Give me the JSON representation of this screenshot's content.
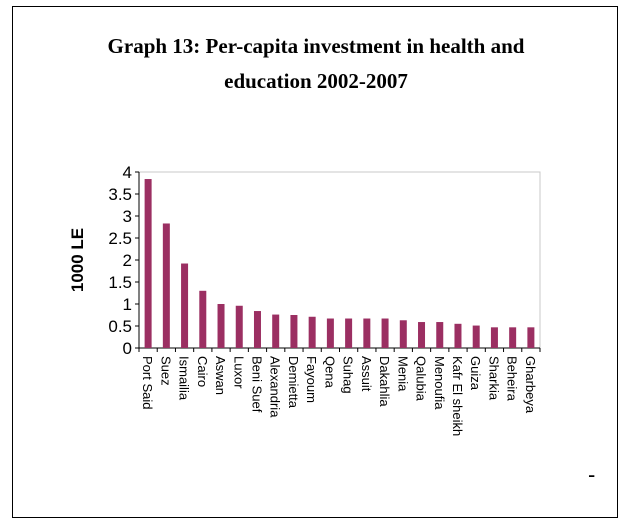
{
  "chart_data": {
    "type": "bar",
    "title_line1": "Graph 13: Per-capita investment in health and",
    "title_line2": "education 2002-2007",
    "ylabel": "1000 LE",
    "xlabel": "",
    "ylim": [
      0,
      4
    ],
    "yticks": [
      "0",
      "0.5",
      "1",
      "1.5",
      "2",
      "2.5",
      "3",
      "3.5",
      "4"
    ],
    "grid": false,
    "legend": "none",
    "bar_color": "#9B2F62",
    "categories": [
      "Port Said",
      "Suez",
      "Ismailia",
      "Cairo",
      "Aswan",
      "Luxor",
      "Beni Suef",
      "Alexandria",
      "Demietta",
      "Fayoum",
      "Qena",
      "Suhag",
      "Assuit",
      "Dakahlia",
      "Menia",
      "Qalubia",
      "Menoufia",
      "Kafr El sheikh",
      "Guiza",
      "Sharkia",
      "Beheira",
      "Gharbeya"
    ],
    "values": [
      3.84,
      2.83,
      1.92,
      1.3,
      1.0,
      0.96,
      0.84,
      0.76,
      0.75,
      0.71,
      0.67,
      0.67,
      0.67,
      0.67,
      0.63,
      0.59,
      0.59,
      0.55,
      0.51,
      0.47,
      0.47,
      0.47
    ]
  },
  "footer_mark": "-"
}
